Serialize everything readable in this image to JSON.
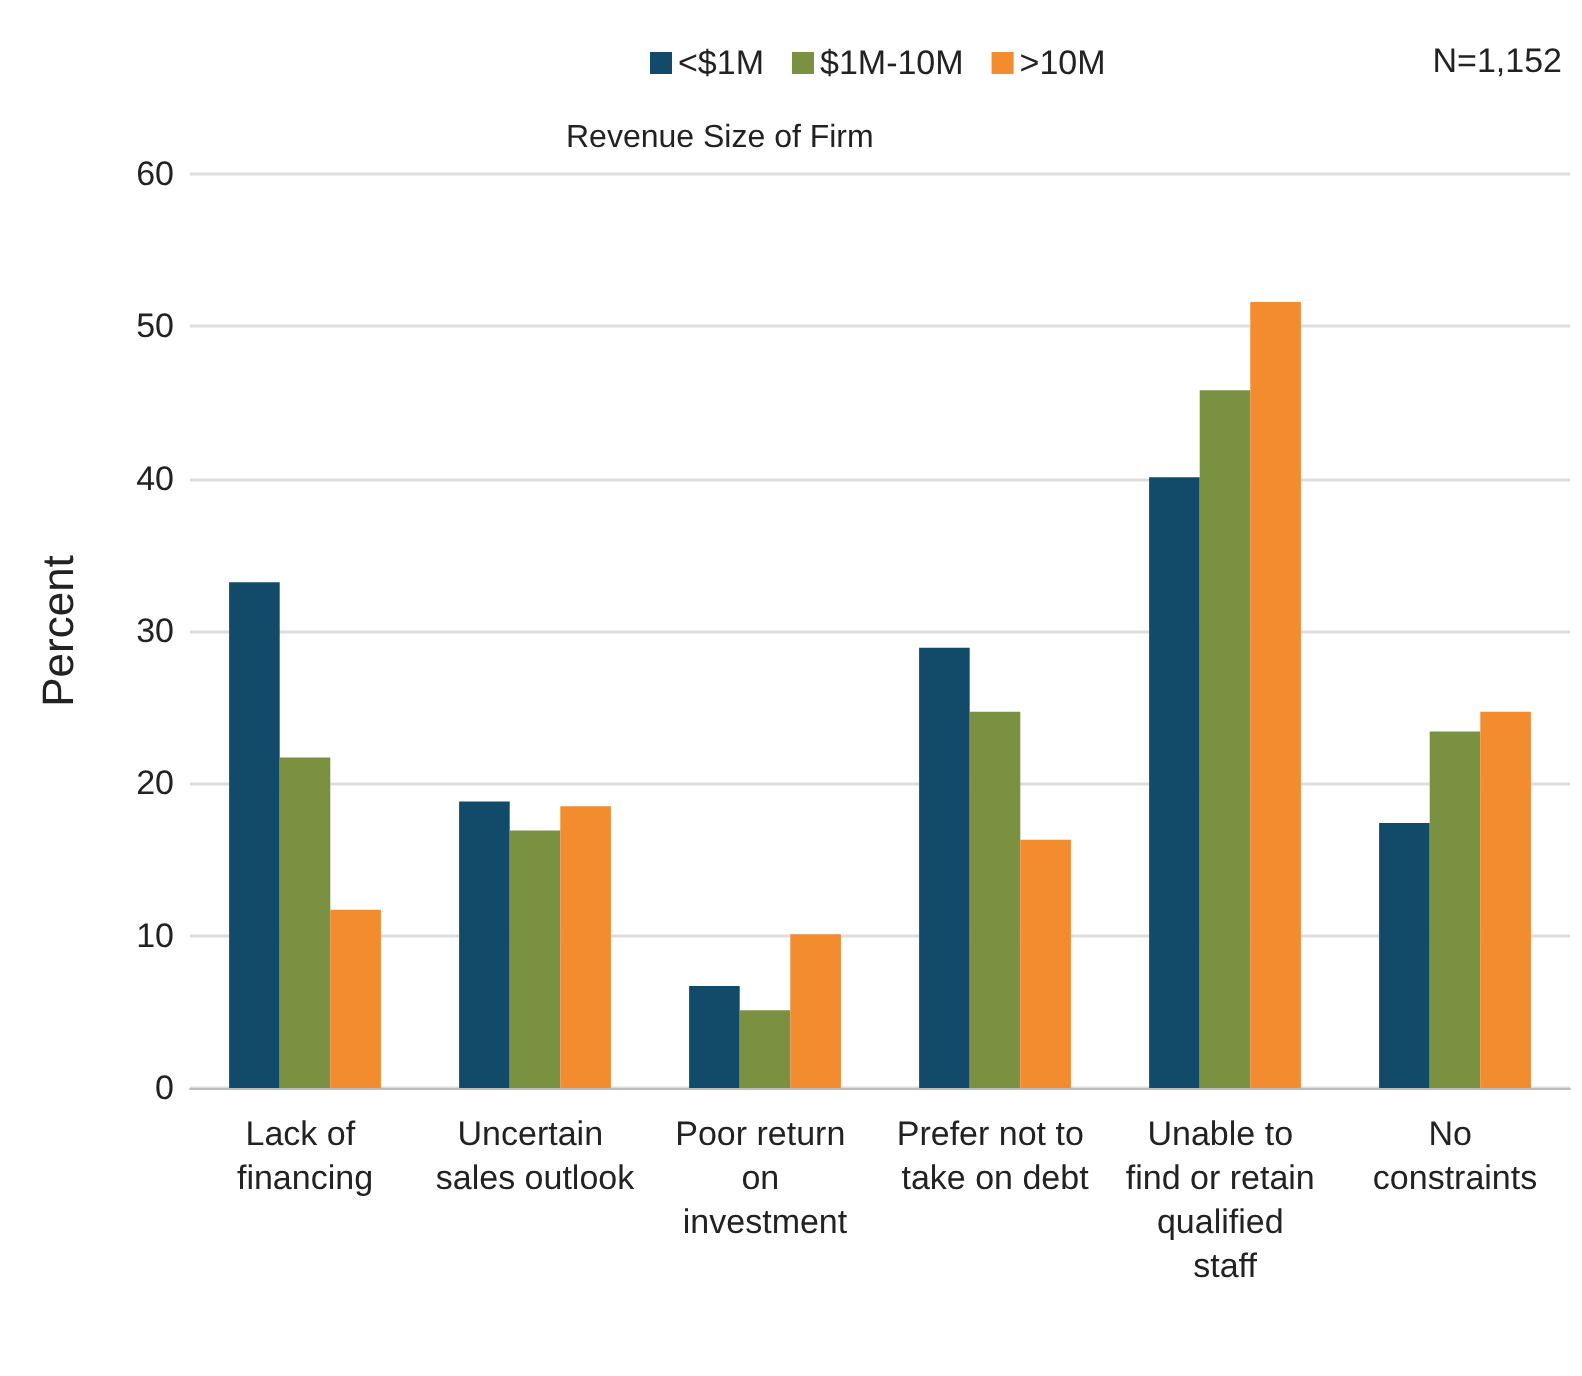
{
  "chart_data": {
    "type": "bar",
    "ylabel": "Percent",
    "legend_title": "Revenue Size of Firm",
    "annotations": [
      "N=1,152"
    ],
    "categories": [
      "Lack of financing",
      "Uncertain sales outlook",
      "Poor return on investment",
      "Prefer not to take on debt",
      "Unable to find or retain qualified staff",
      "No constraints"
    ],
    "series": [
      {
        "name": "<$1M",
        "color": "#124a69",
        "values": [
          33.2,
          18.8,
          6.7,
          28.9,
          40.1,
          17.4
        ]
      },
      {
        "name": "$1M-10M",
        "color": "#7a9142",
        "values": [
          21.7,
          16.9,
          5.1,
          24.7,
          45.8,
          23.4
        ]
      },
      {
        "name": ">10M",
        "color": "#f38b2f",
        "values": [
          11.7,
          18.5,
          10.1,
          16.3,
          51.6,
          24.7
        ]
      }
    ],
    "ylim": [
      0,
      60
    ],
    "yticks": [
      0,
      10,
      20,
      30,
      40,
      50,
      60
    ],
    "grid": "y",
    "legend": "top"
  }
}
